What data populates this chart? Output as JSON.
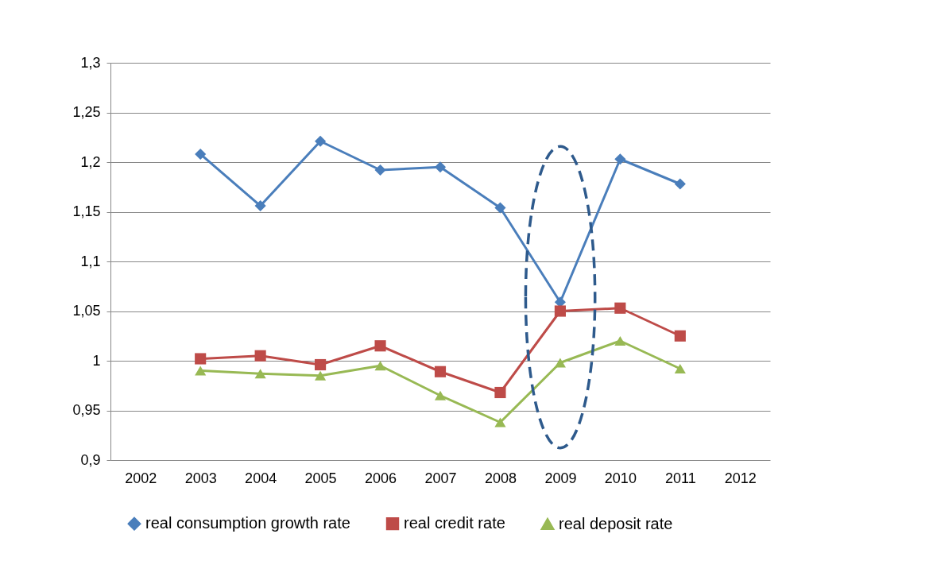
{
  "chart_data": {
    "type": "line",
    "categories": [
      "2002",
      "2003",
      "2004",
      "2005",
      "2006",
      "2007",
      "2008",
      "2009",
      "2010",
      "2011",
      "2012"
    ],
    "series": [
      {
        "name": "real consumption growth rate",
        "color": "#4a7ebb",
        "marker": "diamond",
        "values": [
          null,
          1.208,
          1.156,
          1.221,
          1.192,
          1.195,
          1.154,
          1.059,
          1.203,
          1.178,
          null
        ]
      },
      {
        "name": "real credit rate",
        "color": "#be4b48",
        "marker": "square",
        "values": [
          null,
          1.002,
          1.005,
          0.996,
          1.015,
          0.989,
          0.968,
          1.05,
          1.053,
          1.025,
          null
        ]
      },
      {
        "name": "real deposit rate",
        "color": "#98b954",
        "marker": "triangle",
        "values": [
          null,
          0.99,
          0.987,
          0.985,
          0.995,
          0.965,
          0.938,
          0.998,
          1.02,
          0.992,
          null
        ]
      }
    ],
    "ylim": [
      0.9,
      1.3
    ],
    "yticks": [
      {
        "value": 0.9,
        "label": "0,9"
      },
      {
        "value": 0.95,
        "label": "0,95"
      },
      {
        "value": 1,
        "label": "1"
      },
      {
        "value": 1.05,
        "label": "1,05"
      },
      {
        "value": 1.1,
        "label": "1,1"
      },
      {
        "value": 1.15,
        "label": "1,15"
      },
      {
        "value": 1.2,
        "label": "1,2"
      },
      {
        "value": 1.25,
        "label": "1,25"
      },
      {
        "value": 1.3,
        "label": "1,3"
      }
    ],
    "grid": "y",
    "legend": "bottom",
    "line_style": "solid"
  }
}
